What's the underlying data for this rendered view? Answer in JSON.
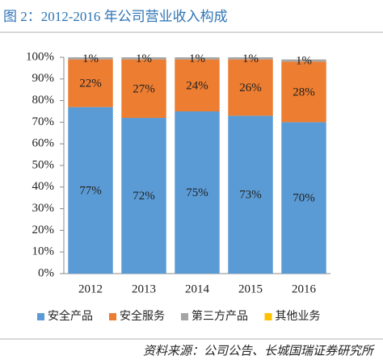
{
  "chart_data": {
    "type": "stacked_bar_percent",
    "title": "图 2：2012-2016 年公司营业收入构成",
    "source": "资料来源：公司公告、长城国瑞证券研究所",
    "categories": [
      "2012",
      "2013",
      "2014",
      "2015",
      "2016"
    ],
    "series": [
      {
        "name": "安全产品",
        "color": "#5b9bd5",
        "values": [
          77,
          72,
          75,
          73,
          70
        ],
        "value_labels": [
          "77%",
          "72%",
          "75%",
          "73%",
          "70%"
        ]
      },
      {
        "name": "安全服务",
        "color": "#ed7d31",
        "values": [
          22,
          27,
          24,
          26,
          28
        ],
        "value_labels": [
          "22%",
          "27%",
          "24%",
          "26%",
          "28%"
        ]
      },
      {
        "name": "第三方产品",
        "color": "#a5a5a5",
        "values": [
          1,
          1,
          1,
          1,
          1
        ],
        "value_labels": [
          "1%",
          "1%",
          "1%",
          "1%",
          "1%"
        ]
      },
      {
        "name": "其他业务",
        "color": "#ffc000",
        "values": [
          0,
          0,
          0,
          0,
          0
        ]
      }
    ],
    "ylim": [
      0,
      100
    ],
    "yticks": [
      {
        "value": 0,
        "label": "0%"
      },
      {
        "value": 10,
        "label": "10%"
      },
      {
        "value": 20,
        "label": "20%"
      },
      {
        "value": 30,
        "label": "30%"
      },
      {
        "value": 40,
        "label": "40%"
      },
      {
        "value": 50,
        "label": "50%"
      },
      {
        "value": 60,
        "label": "60%"
      },
      {
        "value": 70,
        "label": "70%"
      },
      {
        "value": 80,
        "label": "80%"
      },
      {
        "value": 90,
        "label": "90%"
      },
      {
        "value": 100,
        "label": "100%"
      }
    ],
    "grid": false
  }
}
